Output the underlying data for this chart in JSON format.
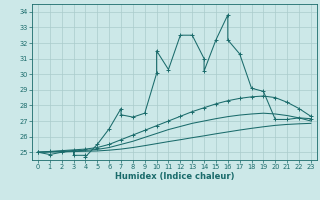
{
  "xlabel": "Humidex (Indice chaleur)",
  "xlim": [
    -0.5,
    23.5
  ],
  "ylim": [
    24.5,
    34.5
  ],
  "xticks": [
    0,
    1,
    2,
    3,
    4,
    5,
    6,
    7,
    8,
    9,
    10,
    11,
    12,
    13,
    14,
    15,
    16,
    17,
    18,
    19,
    20,
    21,
    22,
    23
  ],
  "yticks": [
    25,
    26,
    27,
    28,
    29,
    30,
    31,
    32,
    33,
    34
  ],
  "bg_color": "#cce8e8",
  "grid_color": "#aacccc",
  "line_color": "#1a6b6b",
  "s1_x": [
    0,
    1,
    2,
    3,
    3,
    4,
    4,
    5,
    6,
    7,
    7,
    8,
    9,
    10,
    10,
    11,
    12,
    13,
    14,
    14,
    15,
    16,
    16,
    17,
    18,
    19,
    20,
    21,
    22,
    23
  ],
  "s1_y": [
    25.0,
    24.85,
    25.0,
    25.1,
    24.8,
    24.8,
    24.7,
    25.5,
    26.5,
    27.8,
    27.4,
    27.25,
    27.5,
    30.05,
    31.5,
    30.3,
    32.5,
    32.5,
    31.0,
    30.2,
    32.2,
    33.8,
    32.2,
    31.3,
    29.1,
    28.9,
    27.1,
    27.1,
    27.2,
    27.15
  ],
  "s2_x": [
    0,
    1,
    2,
    3,
    4,
    5,
    6,
    7,
    8,
    9,
    10,
    11,
    12,
    13,
    14,
    15,
    16,
    17,
    18,
    19,
    20,
    21,
    22,
    23
  ],
  "s2_y": [
    25.0,
    25.05,
    25.1,
    25.15,
    25.2,
    25.3,
    25.5,
    25.8,
    26.1,
    26.4,
    26.7,
    27.0,
    27.3,
    27.6,
    27.85,
    28.1,
    28.3,
    28.45,
    28.55,
    28.6,
    28.5,
    28.2,
    27.8,
    27.3
  ],
  "s3_x": [
    0,
    1,
    2,
    3,
    4,
    5,
    6,
    7,
    8,
    9,
    10,
    11,
    12,
    13,
    14,
    15,
    16,
    17,
    18,
    19,
    20,
    21,
    22,
    23
  ],
  "s3_y": [
    25.0,
    25.03,
    25.06,
    25.09,
    25.12,
    25.18,
    25.3,
    25.5,
    25.7,
    25.95,
    26.2,
    26.45,
    26.65,
    26.85,
    27.0,
    27.15,
    27.28,
    27.38,
    27.45,
    27.5,
    27.45,
    27.35,
    27.2,
    27.0
  ],
  "s4_x": [
    0,
    1,
    2,
    3,
    4,
    5,
    6,
    7,
    8,
    9,
    10,
    11,
    12,
    13,
    14,
    15,
    16,
    17,
    18,
    19,
    20,
    21,
    22,
    23
  ],
  "s4_y": [
    25.0,
    25.01,
    25.02,
    25.04,
    25.06,
    25.08,
    25.13,
    25.2,
    25.3,
    25.42,
    25.55,
    25.68,
    25.8,
    25.93,
    26.05,
    26.18,
    26.3,
    26.42,
    26.53,
    26.63,
    26.72,
    26.78,
    26.82,
    26.85
  ]
}
